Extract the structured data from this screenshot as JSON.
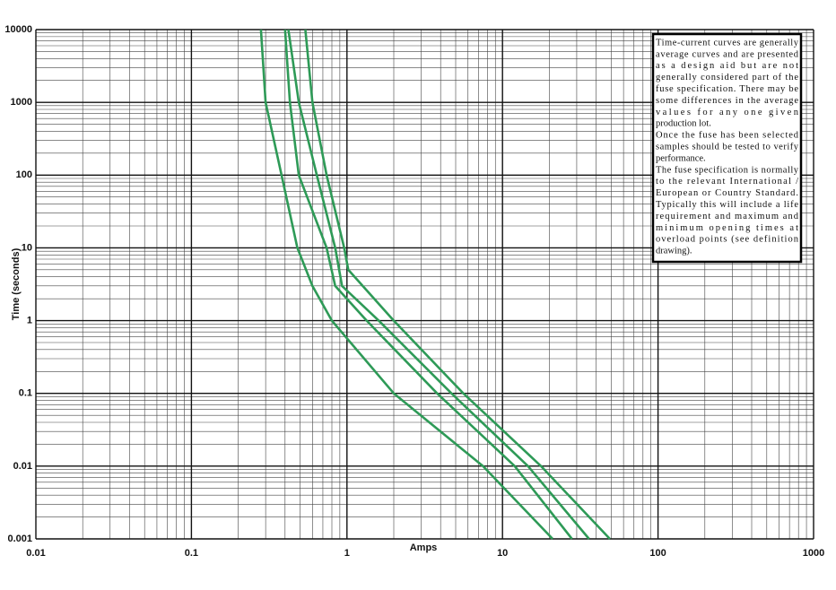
{
  "chart_data": {
    "type": "line",
    "y_label": "Time (seconds)",
    "x_label": "Amps",
    "log_x": true,
    "log_y": true,
    "grid": true,
    "minor_grid": true,
    "xlim": [
      0.01,
      1000
    ],
    "ylim": [
      0.001,
      10000
    ],
    "xticks": [
      0.01,
      0.1,
      1,
      10,
      100,
      1000
    ],
    "yticks": [
      0.001,
      0.01,
      0.1,
      1,
      10,
      100,
      1000,
      10000
    ],
    "series": [
      {
        "color": "#2e9a57",
        "x": [
          0.28,
          0.3,
          0.38,
          0.48,
          0.6,
          0.8,
          2.0,
          7.5,
          21
        ],
        "values": [
          10000,
          1000,
          100,
          10,
          3,
          1,
          0.1,
          0.01,
          0.001
        ]
      },
      {
        "color": "#2e9a57",
        "x": [
          0.4,
          0.43,
          0.49,
          0.74,
          0.84,
          1.34,
          3.8,
          12,
          28
        ],
        "values": [
          10000,
          1000,
          100,
          10,
          3,
          1,
          0.1,
          0.01,
          0.001
        ]
      },
      {
        "color": "#2e9a57",
        "x": [
          0.42,
          0.49,
          0.64,
          0.84,
          0.93,
          1.6,
          4.7,
          14.6,
          36
        ],
        "values": [
          10000,
          1000,
          100,
          10,
          3,
          1,
          0.1,
          0.01,
          0.001
        ]
      },
      {
        "color": "#2e9a57",
        "x": [
          0.54,
          0.6,
          0.74,
          0.96,
          1.02,
          2.0,
          5.6,
          17.7,
          49
        ],
        "values": [
          10000,
          1000,
          100,
          10,
          5,
          1,
          0.1,
          0.01,
          0.001
        ]
      }
    ],
    "annotation": [
      "Time-current curves are generally",
      "average curves and are presented",
      "as a design aid but are not",
      "generally considered part of the",
      "fuse specification. There may be",
      "some differences in the average",
      "values for any one given",
      "production lot.",
      "Once the fuse has been selected",
      "samples should be tested to verify",
      "performance.",
      "The fuse specification is normally",
      "to the relevant International /",
      "European or Country Standard.",
      "Typically this will include a life",
      "requirement and maximum and",
      "minimum opening times at",
      "overload points (see definition",
      "drawing)."
    ]
  }
}
